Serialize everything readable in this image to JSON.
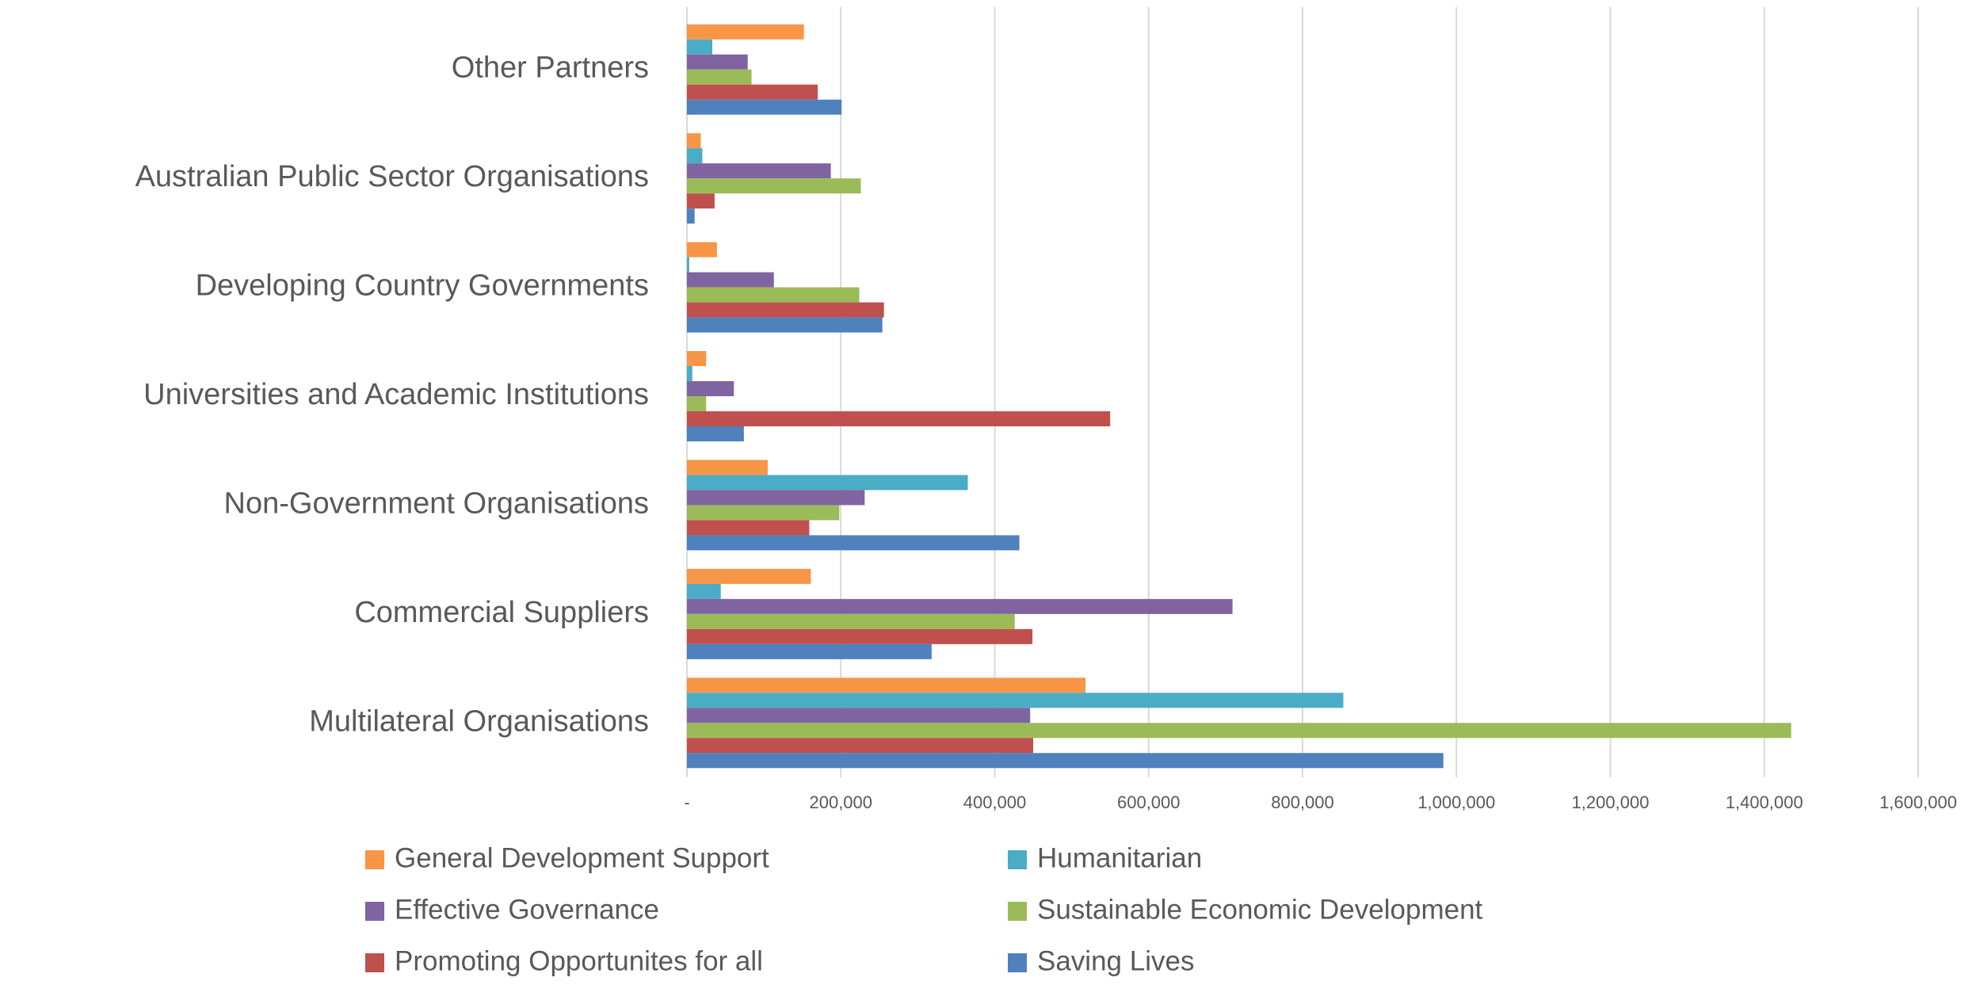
{
  "chart_data": {
    "type": "hbar",
    "categories": [
      "Other Partners",
      "Australian Public Sector Organisations",
      "Developing Country Governments",
      "Universities and Academic Institutions",
      "Non-Government Organisations",
      "Commercial Suppliers",
      "Multilateral Organisations"
    ],
    "series": [
      {
        "name": "General Development Support",
        "color": "#F79646",
        "values": [
          152000,
          18000,
          39000,
          25000,
          105000,
          161000,
          518000
        ]
      },
      {
        "name": "Humanitarian",
        "color": "#4BACC6",
        "values": [
          33000,
          20000,
          3000,
          7000,
          365000,
          44000,
          853000
        ]
      },
      {
        "name": "Effective Governance",
        "color": "#8064A2",
        "values": [
          79000,
          187000,
          113000,
          61000,
          231000,
          709000,
          446000
        ]
      },
      {
        "name": "Sustainable Economic Development",
        "color": "#9BBB59",
        "values": [
          84000,
          226000,
          224000,
          25000,
          198000,
          426000,
          1435000
        ]
      },
      {
        "name": "Promoting Opportunites for all",
        "color": "#C0504D",
        "values": [
          170000,
          36000,
          256000,
          550000,
          159000,
          449000,
          450000
        ]
      },
      {
        "name": "Saving Lives",
        "color": "#4F81BD",
        "values": [
          201000,
          10000,
          254000,
          74000,
          432000,
          318000,
          983000
        ]
      }
    ],
    "xlim": [
      0,
      1600000
    ],
    "xticks": [
      {
        "value": 0,
        "label": "-"
      },
      {
        "value": 200000,
        "label": "200,000"
      },
      {
        "value": 400000,
        "label": "400,000"
      },
      {
        "value": 600000,
        "label": "600,000"
      },
      {
        "value": 800000,
        "label": "800,000"
      },
      {
        "value": 1000000,
        "label": "1,000,000"
      },
      {
        "value": 1200000,
        "label": "1,200,000"
      },
      {
        "value": 1400000,
        "label": "1,400,000"
      },
      {
        "value": 1600000,
        "label": "1,600,000"
      }
    ],
    "grid": true
  }
}
